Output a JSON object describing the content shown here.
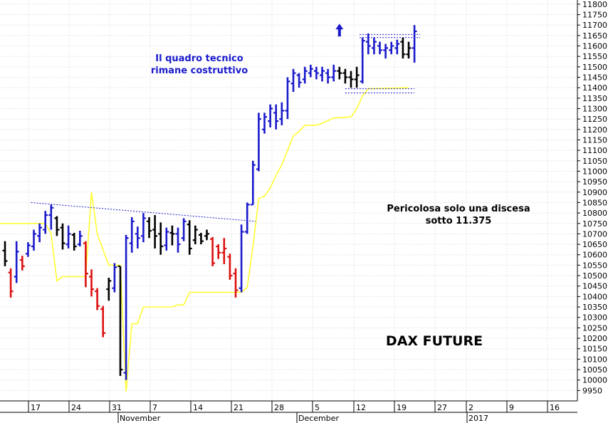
{
  "chart_data": {
    "type": "ohlc_bar",
    "title": "DAX FUTURE",
    "annotations": [
      "Il quadro tecnico",
      "rimane costruttivo",
      "Pericolosa solo una discesa",
      "sotto 11.375"
    ],
    "ylim": [
      9900,
      11820
    ],
    "y_ticks": [
      9950,
      10000,
      10050,
      10100,
      10150,
      10200,
      10250,
      10300,
      10350,
      10400,
      10450,
      10500,
      10550,
      10600,
      10650,
      10700,
      10750,
      10800,
      10850,
      10900,
      10950,
      11000,
      11050,
      11100,
      11150,
      11200,
      11250,
      11300,
      11350,
      11400,
      11450,
      11500,
      11550,
      11600,
      11650,
      11700,
      11750,
      11800
    ],
    "x_day_labels": [
      "17",
      "24",
      "31",
      "7",
      "14",
      "21",
      "28",
      "5",
      "12",
      "19",
      "27",
      "2",
      "9",
      "16"
    ],
    "x_month_labels": [
      "November",
      "December",
      "2017"
    ],
    "grid": true,
    "bar_colors": {
      "up": "#1a1acc",
      "down": "#dd1111",
      "neutral": "#000000"
    },
    "indicator_color": "#ffff33",
    "bars": [
      {
        "i": 0,
        "h": 10665,
        "l": 10545,
        "o": 10620,
        "c": 10570,
        "col": "k"
      },
      {
        "i": 1,
        "h": 10535,
        "l": 10395,
        "o": 10515,
        "c": 10425,
        "col": "r"
      },
      {
        "i": 2,
        "h": 10665,
        "l": 10465,
        "o": 10495,
        "c": 10615,
        "col": "b"
      },
      {
        "i": 3,
        "h": 10595,
        "l": 10525,
        "o": 10575,
        "c": 10545,
        "col": "r"
      },
      {
        "i": 4,
        "h": 10660,
        "l": 10590,
        "o": 10605,
        "c": 10645,
        "col": "b"
      },
      {
        "i": 5,
        "h": 10720,
        "l": 10620,
        "o": 10640,
        "c": 10700,
        "col": "b"
      },
      {
        "i": 6,
        "h": 10750,
        "l": 10660,
        "o": 10690,
        "c": 10730,
        "col": "b"
      },
      {
        "i": 7,
        "h": 10810,
        "l": 10700,
        "o": 10720,
        "c": 10790,
        "col": "b"
      },
      {
        "i": 8,
        "h": 10840,
        "l": 10720,
        "o": 10790,
        "c": 10825,
        "col": "b"
      },
      {
        "i": 9,
        "h": 10785,
        "l": 10690,
        "o": 10775,
        "c": 10720,
        "col": "k"
      },
      {
        "i": 10,
        "h": 10750,
        "l": 10625,
        "o": 10730,
        "c": 10655,
        "col": "k"
      },
      {
        "i": 11,
        "h": 10740,
        "l": 10630,
        "o": 10650,
        "c": 10700,
        "col": "b"
      },
      {
        "i": 12,
        "h": 10705,
        "l": 10620,
        "o": 10695,
        "c": 10640,
        "col": "k"
      },
      {
        "i": 13,
        "h": 10715,
        "l": 10640,
        "o": 10650,
        "c": 10690,
        "col": "b"
      },
      {
        "i": 14,
        "h": 10665,
        "l": 10445,
        "o": 10655,
        "c": 10510,
        "col": "r"
      },
      {
        "i": 15,
        "h": 10530,
        "l": 10400,
        "o": 10495,
        "c": 10435,
        "col": "r"
      },
      {
        "i": 16,
        "h": 10440,
        "l": 10335,
        "o": 10425,
        "c": 10355,
        "col": "r"
      },
      {
        "i": 17,
        "h": 10355,
        "l": 10205,
        "o": 10340,
        "c": 10225,
        "col": "r"
      },
      {
        "i": 18,
        "h": 10490,
        "l": 10380,
        "o": 10435,
        "c": 10475,
        "col": "k"
      },
      {
        "i": 19,
        "h": 10560,
        "l": 10420,
        "o": 10440,
        "c": 10540,
        "col": "b"
      },
      {
        "i": 20,
        "h": 10545,
        "l": 10020,
        "o": 10545,
        "c": 10050,
        "col": "k"
      },
      {
        "i": 21,
        "h": 10695,
        "l": 10000,
        "o": 10035,
        "c": 10680,
        "col": "b"
      },
      {
        "i": 22,
        "h": 10780,
        "l": 10610,
        "o": 10655,
        "c": 10760,
        "col": "b"
      },
      {
        "i": 23,
        "h": 10735,
        "l": 10630,
        "o": 10700,
        "c": 10680,
        "col": "b"
      },
      {
        "i": 24,
        "h": 10800,
        "l": 10660,
        "o": 10690,
        "c": 10775,
        "col": "b"
      },
      {
        "i": 25,
        "h": 10780,
        "l": 10680,
        "o": 10760,
        "c": 10715,
        "col": "k"
      },
      {
        "i": 26,
        "h": 10790,
        "l": 10630,
        "o": 10720,
        "c": 10690,
        "col": "k"
      },
      {
        "i": 27,
        "h": 10755,
        "l": 10600,
        "o": 10700,
        "c": 10640,
        "col": "k"
      },
      {
        "i": 28,
        "h": 10730,
        "l": 10620,
        "o": 10645,
        "c": 10710,
        "col": "b"
      },
      {
        "i": 29,
        "h": 10740,
        "l": 10645,
        "o": 10705,
        "c": 10700,
        "col": "k"
      },
      {
        "i": 30,
        "h": 10730,
        "l": 10610,
        "o": 10700,
        "c": 10650,
        "col": "b"
      },
      {
        "i": 31,
        "h": 10775,
        "l": 10665,
        "o": 10680,
        "c": 10760,
        "col": "b"
      },
      {
        "i": 32,
        "h": 10765,
        "l": 10600,
        "o": 10745,
        "c": 10630,
        "col": "k"
      },
      {
        "i": 33,
        "h": 10740,
        "l": 10650,
        "o": 10670,
        "c": 10720,
        "col": "k"
      },
      {
        "i": 34,
        "h": 10705,
        "l": 10650,
        "o": 10695,
        "c": 10665,
        "col": "k"
      },
      {
        "i": 35,
        "h": 10720,
        "l": 10670,
        "o": 10690,
        "c": 10700,
        "col": "k"
      },
      {
        "i": 36,
        "h": 10685,
        "l": 10545,
        "o": 10675,
        "c": 10560,
        "col": "r"
      },
      {
        "i": 37,
        "h": 10650,
        "l": 10580,
        "o": 10640,
        "c": 10610,
        "col": "r"
      },
      {
        "i": 38,
        "h": 10680,
        "l": 10555,
        "o": 10610,
        "c": 10630,
        "col": "r"
      },
      {
        "i": 39,
        "h": 10605,
        "l": 10480,
        "o": 10590,
        "c": 10500,
        "col": "r"
      },
      {
        "i": 40,
        "h": 10535,
        "l": 10395,
        "o": 10510,
        "c": 10430,
        "col": "r"
      },
      {
        "i": 41,
        "h": 10745,
        "l": 10420,
        "o": 10440,
        "c": 10710,
        "col": "b"
      },
      {
        "i": 42,
        "h": 10850,
        "l": 10700,
        "o": 10710,
        "c": 10840,
        "col": "b"
      },
      {
        "i": 43,
        "h": 11050,
        "l": 10840,
        "o": 10840,
        "c": 11030,
        "col": "b"
      },
      {
        "i": 44,
        "h": 11280,
        "l": 11000,
        "o": 11010,
        "c": 11250,
        "col": "b"
      },
      {
        "i": 45,
        "h": 11280,
        "l": 11180,
        "o": 11200,
        "c": 11260,
        "col": "b"
      },
      {
        "i": 46,
        "h": 11320,
        "l": 11210,
        "o": 11240,
        "c": 11300,
        "col": "b"
      },
      {
        "i": 47,
        "h": 11320,
        "l": 11200,
        "o": 11280,
        "c": 11240,
        "col": "b"
      },
      {
        "i": 48,
        "h": 11330,
        "l": 11220,
        "o": 11250,
        "c": 11290,
        "col": "b"
      },
      {
        "i": 49,
        "h": 11450,
        "l": 11250,
        "o": 11290,
        "c": 11430,
        "col": "b"
      },
      {
        "i": 50,
        "h": 11490,
        "l": 11380,
        "o": 11420,
        "c": 11470,
        "col": "b"
      },
      {
        "i": 51,
        "h": 11470,
        "l": 11400,
        "o": 11460,
        "c": 11425,
        "col": "b"
      },
      {
        "i": 52,
        "h": 11500,
        "l": 11420,
        "o": 11440,
        "c": 11480,
        "col": "b"
      },
      {
        "i": 53,
        "h": 11510,
        "l": 11450,
        "o": 11470,
        "c": 11490,
        "col": "b"
      },
      {
        "i": 54,
        "h": 11500,
        "l": 11440,
        "o": 11480,
        "c": 11470,
        "col": "b"
      },
      {
        "i": 55,
        "h": 11500,
        "l": 11430,
        "o": 11460,
        "c": 11480,
        "col": "b"
      },
      {
        "i": 56,
        "h": 11490,
        "l": 11420,
        "o": 11470,
        "c": 11450,
        "col": "b"
      },
      {
        "i": 57,
        "h": 11510,
        "l": 11430,
        "o": 11450,
        "c": 11480,
        "col": "b"
      },
      {
        "i": 58,
        "h": 11500,
        "l": 11440,
        "o": 11480,
        "c": 11470,
        "col": "k"
      },
      {
        "i": 59,
        "h": 11490,
        "l": 11420,
        "o": 11470,
        "c": 11450,
        "col": "k"
      },
      {
        "i": 60,
        "h": 11480,
        "l": 11400,
        "o": 11450,
        "c": 11440,
        "col": "k"
      },
      {
        "i": 61,
        "h": 11500,
        "l": 11400,
        "o": 11440,
        "c": 11460,
        "col": "k"
      },
      {
        "i": 62,
        "h": 11640,
        "l": 11420,
        "o": 11430,
        "c": 11625,
        "col": "b"
      },
      {
        "i": 63,
        "h": 11660,
        "l": 11560,
        "o": 11620,
        "c": 11600,
        "col": "b"
      },
      {
        "i": 64,
        "h": 11640,
        "l": 11560,
        "o": 11590,
        "c": 11620,
        "col": "b"
      },
      {
        "i": 65,
        "h": 11620,
        "l": 11560,
        "o": 11600,
        "c": 11580,
        "col": "b"
      },
      {
        "i": 66,
        "h": 11610,
        "l": 11540,
        "o": 11580,
        "c": 11590,
        "col": "b"
      },
      {
        "i": 67,
        "h": 11620,
        "l": 11560,
        "o": 11580,
        "c": 11600,
        "col": "b"
      },
      {
        "i": 68,
        "h": 11630,
        "l": 11560,
        "o": 11590,
        "c": 11610,
        "col": "b"
      },
      {
        "i": 69,
        "h": 11640,
        "l": 11540,
        "o": 11620,
        "c": 11560,
        "col": "k"
      },
      {
        "i": 70,
        "h": 11620,
        "l": 11540,
        "o": 11560,
        "c": 11590,
        "col": "k"
      },
      {
        "i": 71,
        "h": 11700,
        "l": 11520,
        "o": 11590,
        "c": 11670,
        "col": "b"
      }
    ],
    "indicator": [
      {
        "i": 0,
        "v": 10750
      },
      {
        "i": 5,
        "v": 10750
      },
      {
        "i": 7,
        "v": 10750
      },
      {
        "i": 8,
        "v": 10700
      },
      {
        "i": 9,
        "v": 10475
      },
      {
        "i": 10,
        "v": 10495
      },
      {
        "i": 11,
        "v": 10495
      },
      {
        "i": 14,
        "v": 10495
      },
      {
        "i": 15,
        "v": 10900
      },
      {
        "i": 16,
        "v": 10700
      },
      {
        "i": 18,
        "v": 10550
      },
      {
        "i": 20,
        "v": 10550
      },
      {
        "i": 21,
        "v": 9945
      },
      {
        "i": 22,
        "v": 10270
      },
      {
        "i": 23,
        "v": 10270
      },
      {
        "i": 24,
        "v": 10350
      },
      {
        "i": 29,
        "v": 10350
      },
      {
        "i": 30,
        "v": 10360
      },
      {
        "i": 31,
        "v": 10360
      },
      {
        "i": 32,
        "v": 10420
      },
      {
        "i": 40,
        "v": 10420
      },
      {
        "i": 41,
        "v": 10420
      },
      {
        "i": 42,
        "v": 10445
      },
      {
        "i": 43,
        "v": 10640
      },
      {
        "i": 44,
        "v": 10870
      },
      {
        "i": 45,
        "v": 10880
      },
      {
        "i": 46,
        "v": 10920
      },
      {
        "i": 47,
        "v": 10980
      },
      {
        "i": 48,
        "v": 11030
      },
      {
        "i": 49,
        "v": 11100
      },
      {
        "i": 50,
        "v": 11170
      },
      {
        "i": 51,
        "v": 11190
      },
      {
        "i": 52,
        "v": 11220
      },
      {
        "i": 54,
        "v": 11220
      },
      {
        "i": 55,
        "v": 11230
      },
      {
        "i": 57,
        "v": 11255
      },
      {
        "i": 60,
        "v": 11260
      },
      {
        "i": 61,
        "v": 11300
      },
      {
        "i": 62,
        "v": 11360
      },
      {
        "i": 63,
        "v": 11395
      },
      {
        "i": 70,
        "v": 11400
      }
    ],
    "trendlines": [
      {
        "from": {
          "i": 4.5,
          "v": 10850
        },
        "to": {
          "i": 43.5,
          "v": 10760
        }
      }
    ],
    "levels": [
      {
        "from": 61.5,
        "to": 72,
        "v": 11655
      },
      {
        "from": 61.5,
        "to": 72,
        "v": 11640
      },
      {
        "from": 59,
        "to": 71,
        "v": 11395
      },
      {
        "from": 59,
        "to": 71,
        "v": 11375
      }
    ],
    "arrow_marker": {
      "i": 58,
      "v": 11700
    }
  }
}
